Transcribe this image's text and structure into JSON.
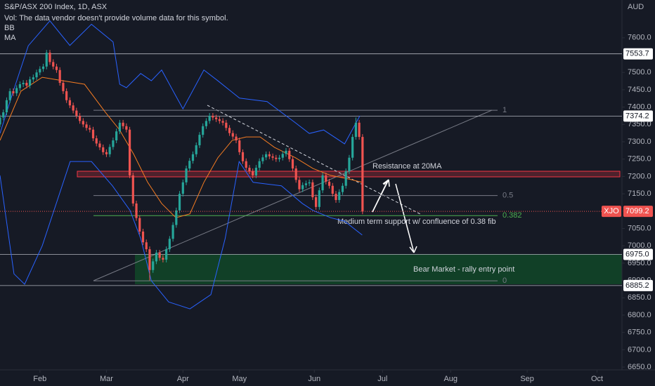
{
  "chart_data": {
    "type": "candlestick",
    "title": "S&P/ASX 200 Index, 1D, ASX",
    "subtitle": "Vol: The data vendor doesn't provide volume data for this symbol.",
    "indicators": [
      "BB",
      "MA"
    ],
    "y_axis_label": "AUD",
    "symbol": "XJO",
    "up_color": "#26a69a",
    "down_color": "#ef5350",
    "xlim": [
      0,
      187
    ],
    "ylim": [
      6642,
      7709
    ],
    "xticks": [
      {
        "value": 12,
        "label": "Feb"
      },
      {
        "value": 32,
        "label": "Mar"
      },
      {
        "value": 55,
        "label": "Apr"
      },
      {
        "value": 72,
        "label": "May"
      },
      {
        "value": 94.5,
        "label": "Jun"
      },
      {
        "value": 115,
        "label": "Jul"
      },
      {
        "value": 135.5,
        "label": "Aug"
      },
      {
        "value": 158.5,
        "label": "Sep"
      },
      {
        "value": 179.5,
        "label": "Oct"
      }
    ],
    "yticks": [
      {
        "value": 6650,
        "label": "6650.0"
      },
      {
        "value": 6700,
        "label": "6700.0"
      },
      {
        "value": 6750,
        "label": "6750.0"
      },
      {
        "value": 6800,
        "label": "6800.0"
      },
      {
        "value": 6850,
        "label": "6850.0"
      },
      {
        "value": 6900,
        "label": "6900.0"
      },
      {
        "value": 6950,
        "label": "6950.0"
      },
      {
        "value": 7000,
        "label": "7000.0"
      },
      {
        "value": 7050,
        "label": "7050.0"
      },
      {
        "value": 7100,
        "label": "7100.0"
      },
      {
        "value": 7150,
        "label": "7150.0"
      },
      {
        "value": 7200,
        "label": "7200.0"
      },
      {
        "value": 7250,
        "label": "7250.0"
      },
      {
        "value": 7300,
        "label": "7300.0"
      },
      {
        "value": 7350,
        "label": "7350.0"
      },
      {
        "value": 7400,
        "label": "7400.0"
      },
      {
        "value": 7450,
        "label": "7450.0"
      },
      {
        "value": 7500,
        "label": "7500.0"
      },
      {
        "value": 7550,
        "label": "7550.0"
      },
      {
        "value": 7600,
        "label": "7600.0"
      }
    ],
    "open": [
      7350,
      7370,
      7385,
      7420,
      7446,
      7440,
      7455,
      7466,
      7470,
      7462,
      7480,
      7486,
      7500,
      7510,
      7517,
      7557,
      7530,
      7517,
      7507,
      7470,
      7446,
      7420,
      7405,
      7390,
      7375,
      7360,
      7350,
      7340,
      7335,
      7310,
      7295,
      7284,
      7270,
      7264,
      7285,
      7304,
      7330,
      7355,
      7345,
      7335,
      7203,
      7122,
      7080,
      7041,
      7010,
      6990,
      6930,
      6955,
      6980,
      6965,
      6960,
      6990,
      7020,
      7060,
      7102,
      7150,
      7183,
      7223,
      7245,
      7264,
      7290,
      7320,
      7345,
      7360,
      7375,
      7370,
      7365,
      7360,
      7355,
      7340,
      7325,
      7315,
      7304,
      7270,
      7244,
      7225,
      7215,
      7203,
      7225,
      7244,
      7255,
      7264,
      7258,
      7254,
      7250,
      7254,
      7265,
      7274,
      7250,
      7223,
      7190,
      7163,
      7175,
      7180,
      7183,
      7140,
      7112,
      7160,
      7203,
      7185,
      7173,
      7150,
      7132,
      7155,
      7173,
      7215,
      7254,
      7314,
      7355,
      7314
    ],
    "high": [
      7378,
      7393,
      7428,
      7454,
      7454,
      7463,
      7474,
      7478,
      7478,
      7488,
      7494,
      7508,
      7518,
      7525,
      7565,
      7565,
      7538,
      7525,
      7515,
      7478,
      7454,
      7428,
      7413,
      7398,
      7383,
      7368,
      7358,
      7348,
      7343,
      7318,
      7303,
      7292,
      7278,
      7293,
      7312,
      7338,
      7363,
      7363,
      7353,
      7343,
      7211,
      7130,
      7088,
      7049,
      7018,
      6998,
      6963,
      6988,
      6988,
      6973,
      6998,
      7028,
      7068,
      7110,
      7158,
      7191,
      7231,
      7253,
      7272,
      7298,
      7328,
      7353,
      7368,
      7383,
      7383,
      7378,
      7373,
      7368,
      7363,
      7348,
      7333,
      7323,
      7312,
      7278,
      7252,
      7233,
      7223,
      7233,
      7252,
      7263,
      7272,
      7272,
      7266,
      7262,
      7262,
      7273,
      7282,
      7282,
      7258,
      7231,
      7198,
      7183,
      7188,
      7191,
      7191,
      7148,
      7168,
      7211,
      7211,
      7193,
      7181,
      7158,
      7163,
      7181,
      7223,
      7262,
      7322,
      7370,
      7363,
      7322
    ],
    "low": [
      7342,
      7362,
      7377,
      7412,
      7432,
      7432,
      7447,
      7458,
      7454,
      7454,
      7472,
      7478,
      7492,
      7502,
      7509,
      7522,
      7509,
      7499,
      7462,
      7438,
      7412,
      7397,
      7382,
      7367,
      7352,
      7342,
      7332,
      7327,
      7302,
      7287,
      7276,
      7262,
      7256,
      7256,
      7277,
      7296,
      7322,
      7337,
      7327,
      7195,
      7114,
      7072,
      7033,
      7002,
      6982,
      6900,
      6922,
      6947,
      6957,
      6952,
      6952,
      6982,
      7012,
      7052,
      7094,
      7142,
      7175,
      7215,
      7237,
      7256,
      7282,
      7312,
      7337,
      7352,
      7362,
      7357,
      7352,
      7347,
      7332,
      7317,
      7307,
      7296,
      7262,
      7236,
      7217,
      7207,
      7195,
      7195,
      7217,
      7236,
      7247,
      7250,
      7246,
      7242,
      7242,
      7246,
      7257,
      7242,
      7215,
      7182,
      7155,
      7155,
      7167,
      7172,
      7132,
      7104,
      7104,
      7152,
      7177,
      7165,
      7142,
      7124,
      7124,
      7147,
      7165,
      7207,
      7246,
      7306,
      7306,
      7091
    ],
    "close": [
      7370,
      7385,
      7420,
      7446,
      7440,
      7455,
      7466,
      7470,
      7462,
      7480,
      7486,
      7500,
      7510,
      7517,
      7557,
      7530,
      7517,
      7507,
      7470,
      7446,
      7420,
      7405,
      7390,
      7375,
      7360,
      7350,
      7340,
      7335,
      7310,
      7295,
      7284,
      7270,
      7264,
      7285,
      7304,
      7330,
      7355,
      7345,
      7335,
      7203,
      7122,
      7080,
      7041,
      7010,
      6990,
      6930,
      6955,
      6980,
      6965,
      6960,
      6990,
      7020,
      7060,
      7102,
      7150,
      7183,
      7223,
      7245,
      7264,
      7290,
      7320,
      7345,
      7360,
      7375,
      7370,
      7365,
      7360,
      7355,
      7340,
      7325,
      7315,
      7304,
      7270,
      7244,
      7225,
      7215,
      7203,
      7225,
      7244,
      7255,
      7264,
      7258,
      7254,
      7250,
      7254,
      7265,
      7274,
      7250,
      7223,
      7190,
      7163,
      7175,
      7180,
      7183,
      7140,
      7112,
      7160,
      7203,
      7185,
      7173,
      7150,
      7132,
      7155,
      7173,
      7215,
      7254,
      7314,
      7355,
      7314,
      7099
    ],
    "lines": [
      {
        "name": "BB",
        "color": "#2962ff",
        "x": [
          0,
          4,
          8.5,
          15,
          21,
          27.5,
          34,
          36,
          38,
          42.3,
          45.5,
          48.6,
          55,
          61.3,
          65.5,
          72,
          80.3,
          88.8,
          93,
          97.3,
          103.6,
          108.2
        ],
        "values": [
          7324,
          7446,
          7577,
          7649,
          7578,
          7639,
          7588,
          7466,
          7456,
          7497,
          7476,
          7507,
          7395,
          7507,
          7476,
          7426,
          7416,
          7355,
          7324,
          7334,
          7294,
          7375
        ]
      },
      {
        "name": "BB",
        "color": "#2962ff",
        "x": [
          0,
          4.2,
          7.4,
          12.7,
          21.1,
          27.5,
          33.8,
          39.1,
          42.3,
          45.5,
          50.7,
          57.1,
          63.4,
          67.7,
          71.9,
          76.1,
          84.6,
          90.9,
          94.1,
          99.4,
          103.6,
          108.9
        ],
        "values": [
          7203,
          6919,
          6889,
          7000,
          7243,
          7243,
          7173,
          7102,
          7021,
          6899,
          6838,
          6818,
          6859,
          7021,
          7243,
          7183,
          7173,
          7122,
          7102,
          7081,
          7071,
          7031
        ]
      },
      {
        "name": "MA",
        "color": "#f57c22",
        "x": [
          0,
          6.3,
          12.7,
          19,
          25.4,
          31.7,
          35.9,
          40.2,
          44.4,
          48.6,
          52.9,
          57.1,
          61.3,
          65.5,
          69.8,
          74,
          78.2,
          82.5,
          88.8,
          94.1,
          99.4,
          104.7,
          108.9
        ],
        "values": [
          7304,
          7446,
          7486,
          7476,
          7466,
          7385,
          7335,
          7264,
          7183,
          7122,
          7081,
          7092,
          7183,
          7254,
          7304,
          7314,
          7314,
          7284,
          7254,
          7223,
          7203,
          7193,
          7183
        ]
      }
    ],
    "levels": [
      {
        "value": 7553.7,
        "label": "7553.7"
      },
      {
        "value": 7374.2,
        "label": "7374.2"
      },
      {
        "value": 6975,
        "label": "6975.0"
      },
      {
        "value": 6885.2,
        "label": "6885.2"
      }
    ],
    "last_price": 7099.2,
    "fib": {
      "levels": [
        1,
        0.5,
        0.382,
        0
      ],
      "low": 6899,
      "high": 7391
    },
    "annotations": [
      "Resistance at 20MA",
      "Medium term support w/ confluence of 0.38 fib",
      "Bear Market - rally entry point"
    ]
  }
}
